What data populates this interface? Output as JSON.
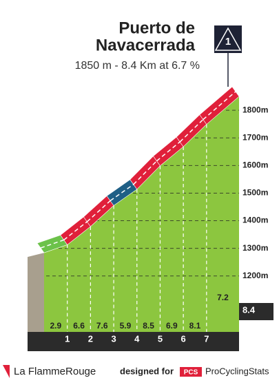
{
  "chart_data": {
    "type": "profile",
    "title_line1": "Puerto de",
    "title_line2": "Navacerrada",
    "subtitle": "1850 m - 8.4 Km at 6.7 %",
    "category": "1",
    "x": [
      0,
      1,
      2,
      3,
      4,
      5,
      6,
      7,
      8.4
    ],
    "elevations": [
      1284,
      1313,
      1379,
      1455,
      1514,
      1599,
      1668,
      1749,
      1850
    ],
    "gradients": [
      2.9,
      6.6,
      7.6,
      5.9,
      8.5,
      6.9,
      8.1,
      7.2
    ],
    "colors": [
      "#6cc24a",
      "#e0203a",
      "#e0203a",
      "#1f5f86",
      "#e0203a",
      "#e0203a",
      "#e0203a",
      "#e0203a"
    ],
    "xlim": [
      0,
      8.4
    ],
    "ylim": [
      1000,
      1900
    ],
    "yticks": [
      {
        "value": 1200,
        "label": "1200m"
      },
      {
        "value": 1300,
        "label": "1300m"
      },
      {
        "value": 1400,
        "label": "1400m"
      },
      {
        "value": 1500,
        "label": "1500m"
      },
      {
        "value": 1600,
        "label": "1600m"
      },
      {
        "value": 1700,
        "label": "1700m"
      },
      {
        "value": 1800,
        "label": "1800m"
      }
    ],
    "fill_color": "#8cc63f",
    "footer": {
      "brand": "La FlammeRouge",
      "designed": "designed for",
      "pcs": "PCS",
      "site": "ProCyclingStats"
    }
  }
}
